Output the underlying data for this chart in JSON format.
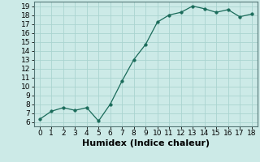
{
  "x": [
    0,
    1,
    2,
    3,
    4,
    5,
    6,
    7,
    8,
    9,
    10,
    11,
    12,
    13,
    14,
    15,
    16,
    17,
    18
  ],
  "y": [
    6.3,
    7.2,
    7.6,
    7.3,
    7.6,
    6.1,
    8.0,
    10.6,
    13.0,
    14.7,
    17.2,
    18.0,
    18.3,
    19.0,
    18.7,
    18.3,
    18.6,
    17.8,
    18.1
  ],
  "line_color": "#1a6b5a",
  "marker": "o",
  "marker_size": 2.5,
  "bg_color": "#cceae7",
  "grid_color": "#aad4d0",
  "xlabel": "Humidex (Indice chaleur)",
  "xlim": [
    -0.5,
    18.5
  ],
  "ylim": [
    5.5,
    19.5
  ],
  "yticks": [
    6,
    7,
    8,
    9,
    10,
    11,
    12,
    13,
    14,
    15,
    16,
    17,
    18,
    19
  ],
  "xticks": [
    0,
    1,
    2,
    3,
    4,
    5,
    6,
    7,
    8,
    9,
    10,
    11,
    12,
    13,
    14,
    15,
    16,
    17,
    18
  ],
  "tick_fontsize": 6.5,
  "xlabel_fontsize": 8
}
